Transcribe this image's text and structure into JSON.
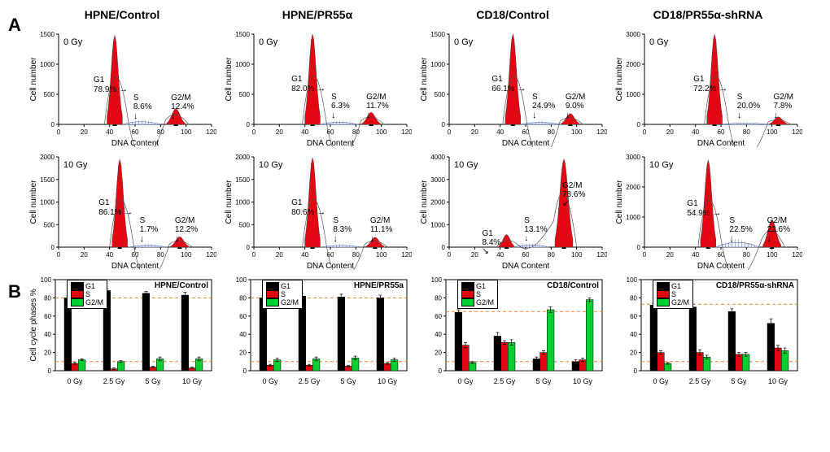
{
  "colors": {
    "g1_fill": "#e30613",
    "g2m_fill": "#e30613",
    "s_fill": "#ffffff",
    "s_hatch": "#5b6fb8",
    "outline": "#000000",
    "bar_g1": "#000000",
    "bar_s": "#e30613",
    "bar_g2m": "#00d030",
    "ref_line": "#ff8030",
    "axis": "#000000",
    "bg": "#ffffff"
  },
  "hist_axis": {
    "xlabel": "DNA Content",
    "ylabel": "Cell number",
    "x_ticks": [
      0,
      20,
      40,
      60,
      80,
      100,
      120
    ]
  },
  "section_a": {
    "label": "A",
    "columns": [
      {
        "title": "HPNE/Control",
        "rows": [
          {
            "dose": "0 Gy",
            "ymax": 1500,
            "yticks": [
              0,
              500,
              1000,
              1500
            ],
            "g1": 78.9,
            "s": 8.6,
            "g2m": 12.4,
            "g1x": 44,
            "g2x": 92,
            "g1h": 1480,
            "g2h": 260,
            "slo": 50,
            "shi": 80
          },
          {
            "dose": "10 Gy",
            "ymax": 2000,
            "yticks": [
              0,
              500,
              1000,
              1500,
              2000
            ],
            "g1": 86.1,
            "s": 1.7,
            "g2m": 12.2,
            "g1x": 48,
            "g2x": 95,
            "g1h": 1950,
            "g2h": 230,
            "slo": 55,
            "shi": 85
          }
        ]
      },
      {
        "title": "HPNE/PR55α",
        "rows": [
          {
            "dose": "0 Gy",
            "ymax": 1500,
            "yticks": [
              0,
              500,
              1000,
              1500
            ],
            "g1": 82.0,
            "s": 6.3,
            "g2m": 11.7,
            "g1x": 46,
            "g2x": 92,
            "g1h": 1500,
            "g2h": 200,
            "slo": 52,
            "shi": 82
          },
          {
            "dose": "10 Gy",
            "ymax": 2000,
            "yticks": [
              0,
              500,
              1000,
              1500,
              2000
            ],
            "g1": 80.6,
            "s": 8.3,
            "g2m": 11.1,
            "g1x": 46,
            "g2x": 95,
            "g1h": 1980,
            "g2h": 220,
            "slo": 52,
            "shi": 85
          }
        ]
      },
      {
        "title": "CD18/Control",
        "rows": [
          {
            "dose": "0 Gy",
            "ymax": 1500,
            "yticks": [
              0,
              500,
              1000,
              1500
            ],
            "g1": 66.1,
            "s": 24.9,
            "g2m": 9.0,
            "g1x": 50,
            "g2x": 95,
            "g1h": 1500,
            "g2h": 180,
            "slo": 55,
            "shi": 88
          },
          {
            "dose": "10 Gy",
            "ymax": 4000,
            "yticks": [
              0,
              1000,
              2000,
              3000,
              4000
            ],
            "g1": 8.4,
            "s": 13.1,
            "g2m": 78.6,
            "g1x": 45,
            "g2x": 90,
            "g1h": 560,
            "g2h": 3900,
            "slo": 50,
            "shi": 78
          }
        ]
      },
      {
        "title": "CD18/PR55α-shRNA",
        "rows": [
          {
            "dose": "0 Gy",
            "ymax": 3000,
            "yticks": [
              0,
              1000,
              2000,
              3000
            ],
            "g1": 72.2,
            "s": 20.0,
            "g2m": 7.8,
            "g1x": 55,
            "g2x": 105,
            "g1h": 3000,
            "g2h": 250,
            "slo": 60,
            "shi": 98
          },
          {
            "dose": "10 Gy",
            "ymax": 3000,
            "yticks": [
              0,
              1000,
              2000,
              3000
            ],
            "g1": 54.9,
            "s": 22.5,
            "g2m": 22.6,
            "g1x": 50,
            "g2x": 100,
            "g1h": 2900,
            "g2h": 900,
            "slo": 56,
            "shi": 90
          }
        ]
      }
    ]
  },
  "section_b": {
    "label": "B",
    "ylabel": "Cell cycle phases %",
    "ymax": 100,
    "yticks": [
      0,
      20,
      40,
      60,
      80,
      100
    ],
    "xcats": [
      "0 Gy",
      "2.5 Gy",
      "5 Gy",
      "10 Gy"
    ],
    "legend": [
      "G1",
      "S",
      "G2/M"
    ],
    "panels": [
      {
        "title": "HPNE/Control",
        "ref_lines": [
          80,
          10
        ],
        "data": [
          {
            "g1": 80,
            "s": 8,
            "g2m": 12,
            "err": [
              2,
              1,
              1
            ]
          },
          {
            "g1": 88,
            "s": 2,
            "g2m": 10,
            "err": [
              2,
              1,
              1
            ]
          },
          {
            "g1": 85,
            "s": 4,
            "g2m": 13,
            "err": [
              2,
              1,
              2
            ]
          },
          {
            "g1": 83,
            "s": 3,
            "g2m": 13,
            "err": [
              3,
              1,
              2
            ]
          }
        ]
      },
      {
        "title": "HPNE/PR55a",
        "ref_lines": [
          80,
          10
        ],
        "data": [
          {
            "g1": 80,
            "s": 6,
            "g2m": 12,
            "err": [
              3,
              1,
              2
            ]
          },
          {
            "g1": 82,
            "s": 6,
            "g2m": 13,
            "err": [
              3,
              1,
              2
            ]
          },
          {
            "g1": 81,
            "s": 5,
            "g2m": 14,
            "err": [
              3,
              1,
              2
            ]
          },
          {
            "g1": 80,
            "s": 8,
            "g2m": 12,
            "err": [
              3,
              1,
              2
            ]
          }
        ]
      },
      {
        "title": "CD18/Control",
        "ref_lines": [
          65,
          10
        ],
        "data": [
          {
            "g1": 64,
            "s": 28,
            "g2m": 9,
            "err": [
              3,
              3,
              1
            ]
          },
          {
            "g1": 38,
            "s": 31,
            "g2m": 31,
            "err": [
              4,
              2,
              3
            ]
          },
          {
            "g1": 13,
            "s": 20,
            "g2m": 67,
            "err": [
              2,
              2,
              3
            ]
          },
          {
            "g1": 10,
            "s": 12,
            "g2m": 78,
            "err": [
              2,
              2,
              2
            ]
          }
        ]
      },
      {
        "title": "CD18/PR55α-shRNA",
        "ref_lines": [
          73,
          10
        ],
        "data": [
          {
            "g1": 72,
            "s": 20,
            "g2m": 8,
            "err": [
              2,
              2,
              1
            ]
          },
          {
            "g1": 70,
            "s": 20,
            "g2m": 15,
            "err": [
              3,
              3,
              2
            ]
          },
          {
            "g1": 65,
            "s": 18,
            "g2m": 18,
            "err": [
              3,
              2,
              2
            ]
          },
          {
            "g1": 52,
            "s": 25,
            "g2m": 22,
            "err": [
              5,
              3,
              3
            ]
          }
        ]
      }
    ]
  }
}
